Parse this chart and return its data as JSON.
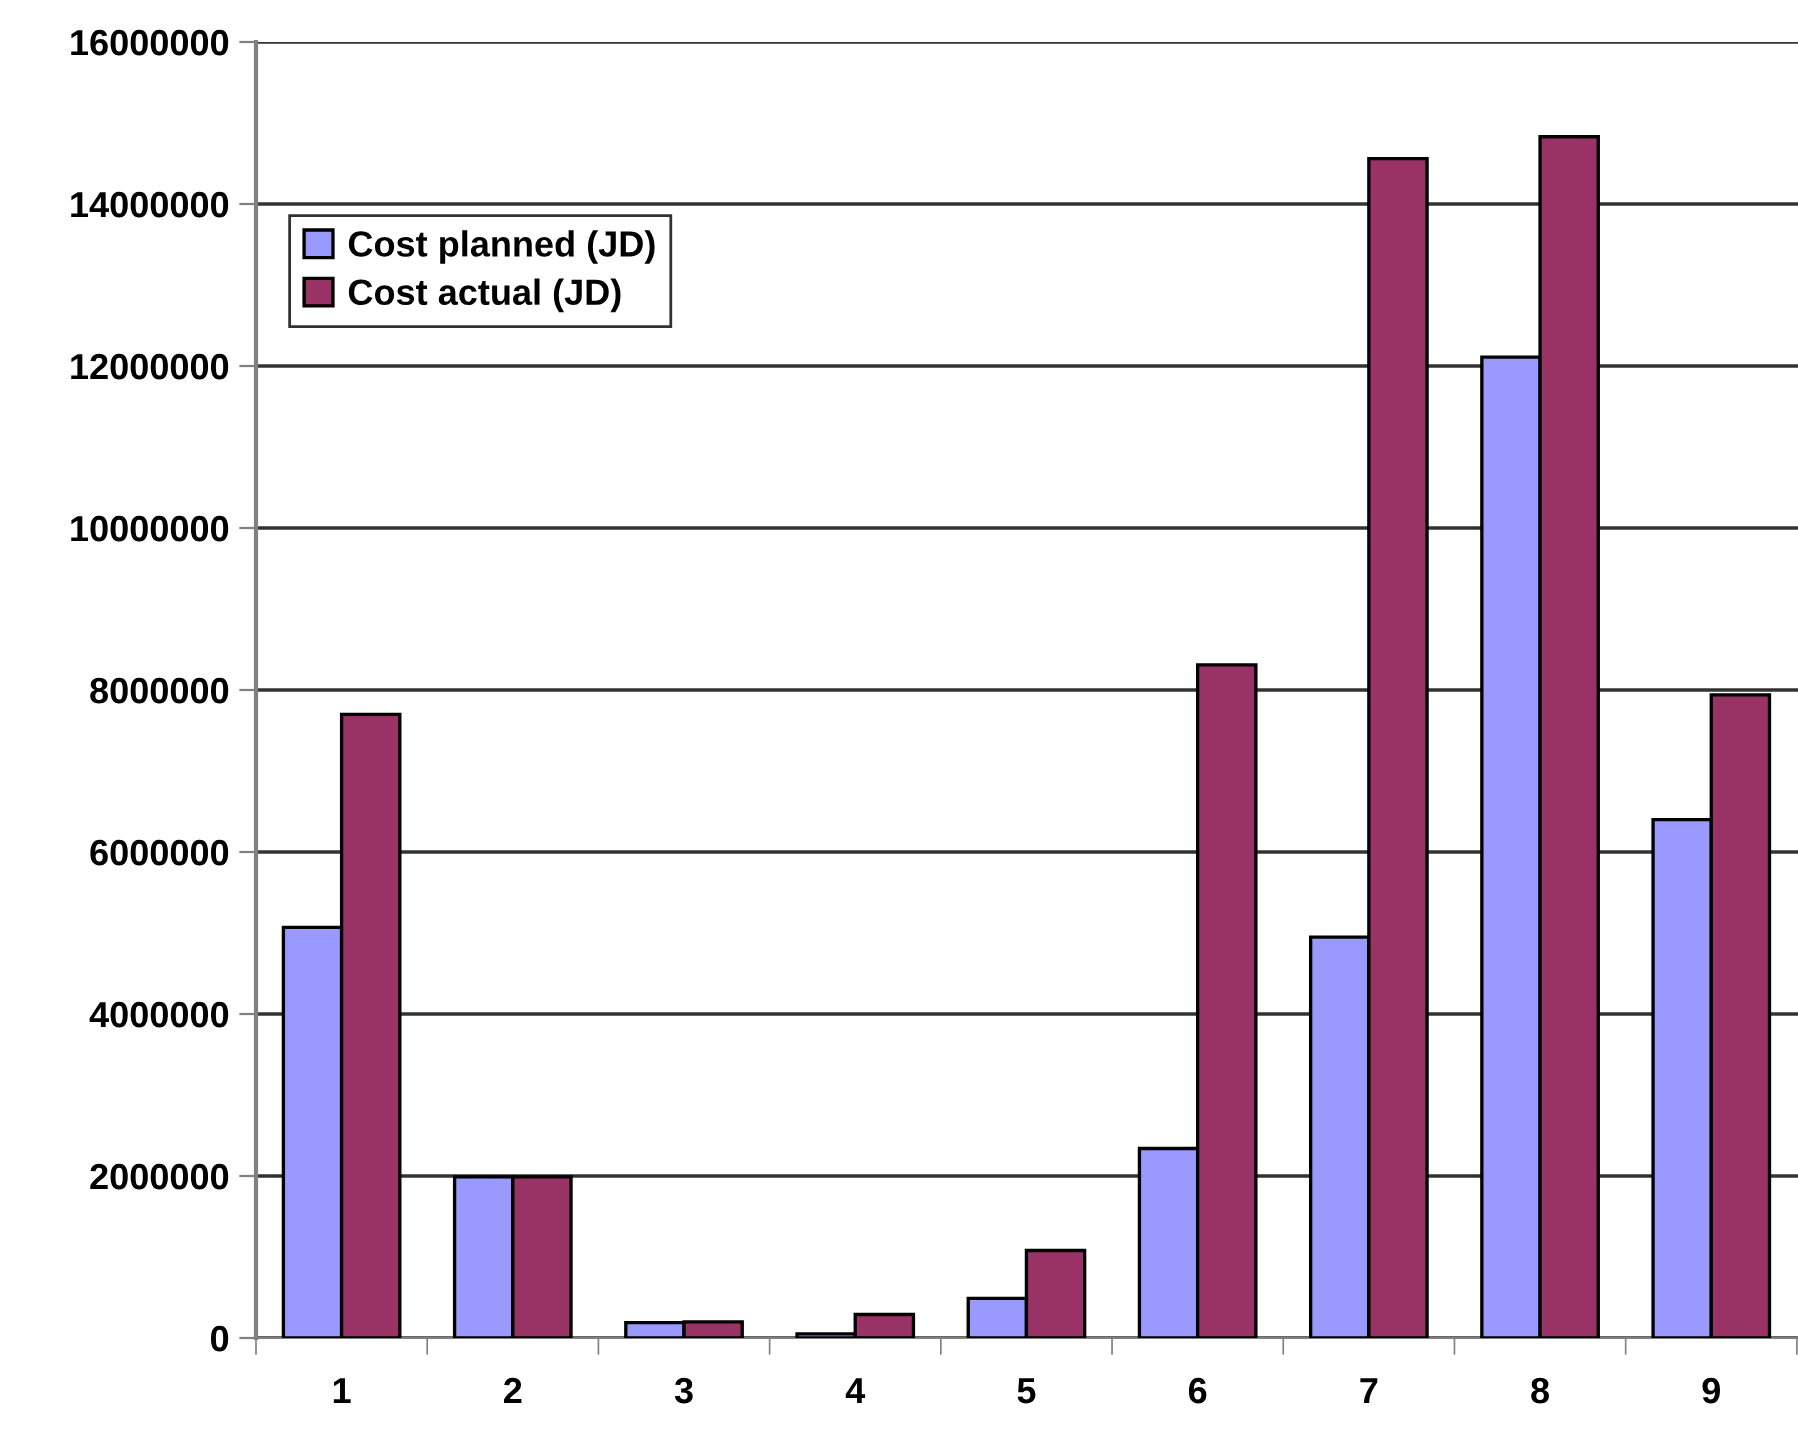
{
  "chart_data": {
    "type": "bar",
    "categories": [
      "1",
      "2",
      "3",
      "4",
      "5",
      "6",
      "7",
      "8",
      "9"
    ],
    "series": [
      {
        "name": "Cost planned (JD)",
        "color": "#9999ff",
        "values": [
          5070000,
          1990000,
          190000,
          50000,
          490000,
          2340000,
          4950000,
          12110000,
          6400000
        ]
      },
      {
        "name": "Cost actual (JD)",
        "color": "#993366",
        "values": [
          7700000,
          1990000,
          200000,
          290000,
          1080000,
          8310000,
          14560000,
          14830000,
          7940000
        ]
      }
    ],
    "ylim": [
      0,
      16000000
    ],
    "yticks": [
      0,
      2000000,
      4000000,
      6000000,
      8000000,
      10000000,
      12000000,
      14000000,
      16000000
    ],
    "grid": "y",
    "legend": "top left"
  }
}
